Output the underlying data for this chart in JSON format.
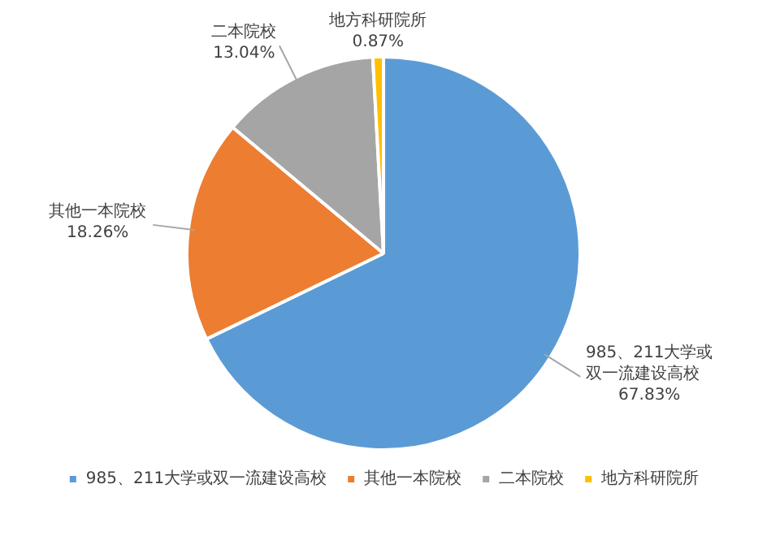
{
  "chart_data": {
    "type": "pie",
    "categories": [
      "985、211大学或双一流建设高校",
      "其他一本院校",
      "二本院校",
      "地方科研院所"
    ],
    "values": [
      67.83,
      18.26,
      13.04,
      0.87
    ],
    "value_labels": [
      "67.83%",
      "18.26%",
      "13.04%",
      "0.87%"
    ],
    "colors": [
      "#5b9bd5",
      "#ed7d31",
      "#a5a5a5",
      "#ffc000"
    ],
    "legend": "bottom"
  }
}
